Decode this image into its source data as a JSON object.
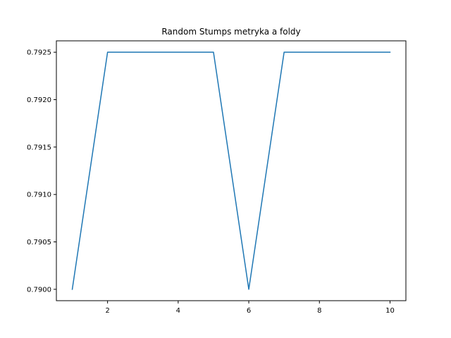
{
  "chart_data": {
    "type": "line",
    "title": "Random Stumps metryka a foldy",
    "xlabel": "",
    "ylabel": "",
    "xlim": [
      0.55,
      10.45
    ],
    "ylim": [
      0.78988,
      0.79262
    ],
    "x_ticks": [
      2,
      4,
      6,
      8,
      10
    ],
    "x_tick_labels": [
      "2",
      "4",
      "6",
      "8",
      "10"
    ],
    "y_ticks": [
      0.79,
      0.7905,
      0.791,
      0.7915,
      0.792,
      0.7925
    ],
    "y_tick_labels": [
      "0.7900",
      "0.7905",
      "0.7910",
      "0.7915",
      "0.7920",
      "0.7925"
    ],
    "grid": false,
    "legend": "none",
    "series": [
      {
        "x": [
          1,
          2,
          3,
          4,
          5,
          6,
          7,
          8,
          9,
          10
        ],
        "values": [
          0.79,
          0.7925,
          0.7925,
          0.7925,
          0.7925,
          0.79,
          0.7925,
          0.7925,
          0.7925,
          0.7925
        ],
        "color": "#1f77b4"
      }
    ]
  }
}
